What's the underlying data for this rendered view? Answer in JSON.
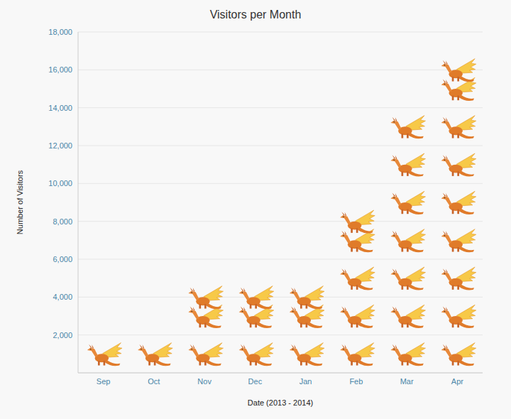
{
  "chart_data": {
    "type": "bar",
    "title": "Visitors per Month",
    "x_label": "Date (2013 - 2014)",
    "y_label": "Number of Visitors",
    "categories": [
      "Sep",
      "Oct",
      "Nov",
      "Dec",
      "Jan",
      "Feb",
      "Mar",
      "Apr"
    ],
    "values": [
      2000,
      2000,
      5000,
      5000,
      5000,
      9000,
      14000,
      17000
    ],
    "ylim": [
      0,
      18000
    ],
    "yticks": [
      {
        "value": 2000,
        "label": "2,000"
      },
      {
        "value": 4000,
        "label": "4,000"
      },
      {
        "value": 6000,
        "label": "6,000"
      },
      {
        "value": 8000,
        "label": "8,000"
      },
      {
        "value": 10000,
        "label": "10,000"
      },
      {
        "value": 12000,
        "label": "12,000"
      },
      {
        "value": 14000,
        "label": "14,000"
      },
      {
        "value": 16000,
        "label": "16,000"
      },
      {
        "value": 18000,
        "label": "18,000"
      }
    ],
    "grid": true,
    "marker": "dragon",
    "color": "#e07b2a"
  }
}
